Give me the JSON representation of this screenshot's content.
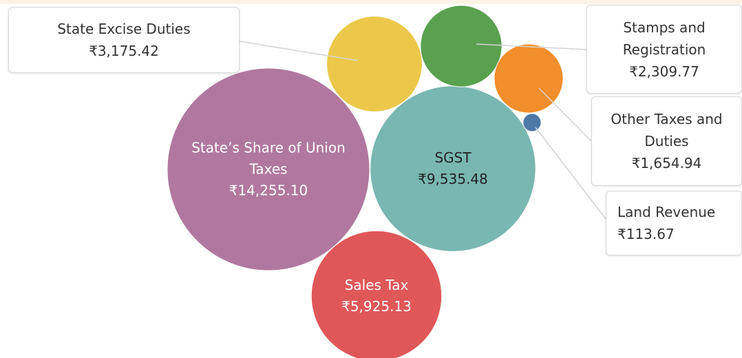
{
  "chart_data": {
    "type": "bubble",
    "categories": [
      "State’s Share of Union Taxes",
      "SGST",
      "Sales Tax",
      "State Excise Duties",
      "Stamps and Registration",
      "Other Taxes and Duties",
      "Land Revenue"
    ],
    "values": [
      14255.1,
      9535.48,
      5925.13,
      3175.42,
      2309.77,
      1654.94,
      113.67
    ],
    "value_labels": [
      "₹14,255.10",
      "₹9,535.48",
      "₹5,925.13",
      "₹3,175.42",
      "₹2,309.77",
      "₹1,654.94",
      "₹113.67"
    ],
    "colors": [
      "#b0789f",
      "#79b7b1",
      "#e05759",
      "#ecc84a",
      "#59a14f",
      "#f28e2b",
      "#4e79a7"
    ]
  }
}
